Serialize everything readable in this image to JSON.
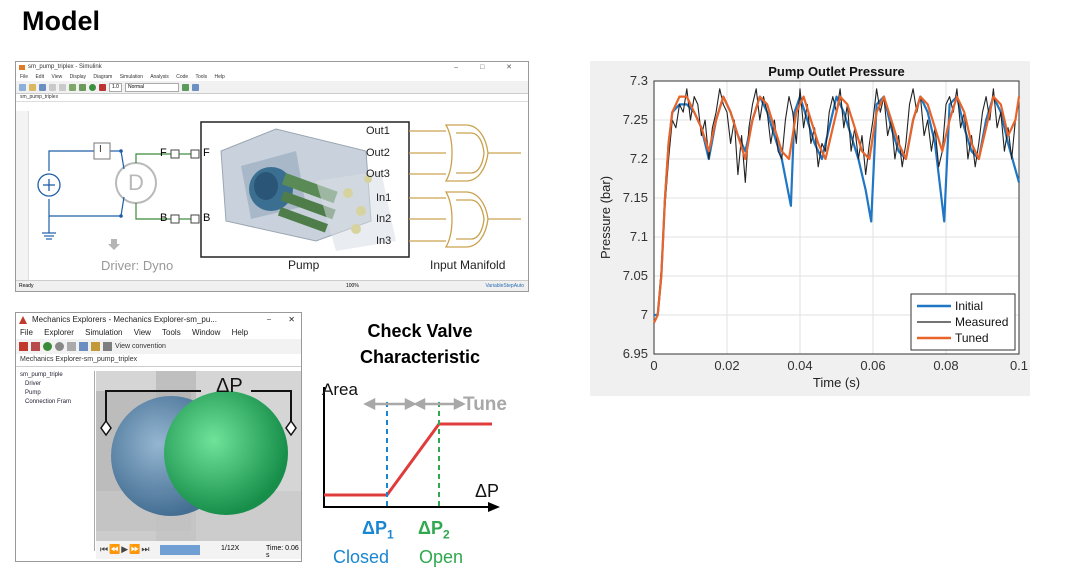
{
  "slide": {
    "title": "Model"
  },
  "simulink": {
    "window_title": "sm_pump_triplex - Simulink",
    "window_controls": "–  □  ✕",
    "menu": [
      "File",
      "Edit",
      "View",
      "Display",
      "Diagram",
      "Simulation",
      "Analysis",
      "Code",
      "Tools",
      "Help"
    ],
    "stop_time": "1.0",
    "sim_mode": "Normal",
    "tab": "sm_pump_triplex",
    "blocks": {
      "driver_label": "Driver: Dyno",
      "pump_label": "Pump",
      "manifold_label": "Input Manifold",
      "driver_letter": "D",
      "inner_block": "I"
    },
    "ports": {
      "f_left": "F",
      "f_right": "F",
      "b_left": "B",
      "b_right": "B"
    },
    "outputs": [
      "Out1",
      "Out2",
      "Out3",
      "In1",
      "In2",
      "In3"
    ],
    "status": {
      "left": "Ready",
      "center": "100%",
      "right": "VariableStepAuto"
    }
  },
  "mechanics": {
    "window_title": "Mechanics Explorers - Mechanics Explorer-sm_pu...",
    "menu": [
      "File",
      "Explorer",
      "Simulation",
      "View",
      "Tools",
      "Window",
      "Help"
    ],
    "view_label": "View convention",
    "tab": "Mechanics Explorer-sm_pump_triplex",
    "tree": [
      "sm_pump_triple",
      "Driver",
      "Pump",
      "Connection Fram"
    ],
    "speed": "1/12X",
    "time_label": "Time: 0.06 s",
    "delta_p": "ΔP"
  },
  "valve": {
    "title_line1": "Check Valve",
    "title_line2": "Characteristic",
    "area_label": "Area",
    "tune_label": "Tune",
    "dp_label": "ΔP",
    "dp1": "ΔP",
    "dp1_sub": "1",
    "dp2": "ΔP",
    "dp2_sub": "2",
    "closed": "Closed",
    "open": "Open",
    "colors": {
      "curve": "#e03c3c",
      "dp1": "#1a86d0",
      "dp2": "#2fa84f",
      "tune": "#a8a8a8"
    }
  },
  "chart_data": {
    "type": "line",
    "title": "Pump Outlet Pressure",
    "xlabel": "Time (s)",
    "ylabel": "Pressure (bar)",
    "xlim": [
      0,
      0.1
    ],
    "ylim": [
      6.95,
      7.3
    ],
    "xticks": [
      0,
      0.02,
      0.04,
      0.06,
      0.08,
      0.1
    ],
    "xtick_labels": [
      "0",
      "0.02",
      "0.04",
      "0.06",
      "0.08",
      "0.1"
    ],
    "yticks": [
      6.95,
      7,
      7.05,
      7.1,
      7.15,
      7.2,
      7.25,
      7.3
    ],
    "ytick_labels": [
      "6.95",
      "7",
      "7.05",
      "7.1",
      "7.15",
      "7.2",
      "7.25",
      "7.3"
    ],
    "legend_position": "bottom-right",
    "series": [
      {
        "name": "Initial",
        "color": "#1f77c4",
        "x": [
          0,
          0.001,
          0.002,
          0.003,
          0.004,
          0.005,
          0.007,
          0.009,
          0.011,
          0.013,
          0.015,
          0.017,
          0.019,
          0.021,
          0.023,
          0.025,
          0.027,
          0.029,
          0.031,
          0.033,
          0.035,
          0.0375,
          0.0385,
          0.04,
          0.042,
          0.044,
          0.046,
          0.048,
          0.05,
          0.052,
          0.054,
          0.056,
          0.058,
          0.0595,
          0.061,
          0.063,
          0.065,
          0.067,
          0.069,
          0.071,
          0.073,
          0.075,
          0.077,
          0.0795,
          0.081,
          0.083,
          0.085,
          0.087,
          0.089,
          0.091,
          0.093,
          0.095,
          0.097,
          0.1
        ],
        "y": [
          7.0,
          7.0,
          7.05,
          7.15,
          7.22,
          7.26,
          7.27,
          7.27,
          7.26,
          7.24,
          7.2,
          7.25,
          7.28,
          7.26,
          7.23,
          7.21,
          7.25,
          7.28,
          7.26,
          7.23,
          7.2,
          7.14,
          7.26,
          7.28,
          7.25,
          7.22,
          7.2,
          7.24,
          7.28,
          7.26,
          7.23,
          7.2,
          7.16,
          7.12,
          7.27,
          7.28,
          7.24,
          7.21,
          7.2,
          7.25,
          7.28,
          7.26,
          7.22,
          7.12,
          7.27,
          7.28,
          7.24,
          7.21,
          7.2,
          7.25,
          7.28,
          7.26,
          7.22,
          7.17
        ]
      },
      {
        "name": "Measured",
        "color": "#222222",
        "x": [
          0,
          0.001,
          0.002,
          0.003,
          0.004,
          0.005,
          0.006,
          0.007,
          0.008,
          0.009,
          0.01,
          0.011,
          0.012,
          0.013,
          0.014,
          0.015,
          0.016,
          0.017,
          0.018,
          0.019,
          0.02,
          0.021,
          0.022,
          0.023,
          0.024,
          0.025,
          0.026,
          0.027,
          0.028,
          0.029,
          0.03,
          0.031,
          0.032,
          0.033,
          0.034,
          0.035,
          0.036,
          0.037,
          0.038,
          0.039,
          0.04,
          0.041,
          0.042,
          0.043,
          0.044,
          0.045,
          0.046,
          0.047,
          0.048,
          0.049,
          0.05,
          0.051,
          0.052,
          0.053,
          0.054,
          0.055,
          0.056,
          0.057,
          0.058,
          0.059,
          0.06,
          0.061,
          0.062,
          0.063,
          0.064,
          0.065,
          0.066,
          0.067,
          0.068,
          0.069,
          0.07,
          0.071,
          0.072,
          0.073,
          0.074,
          0.075,
          0.076,
          0.077,
          0.078,
          0.079,
          0.08,
          0.081,
          0.082,
          0.083,
          0.084,
          0.085,
          0.086,
          0.087,
          0.088,
          0.089,
          0.09,
          0.091,
          0.092,
          0.093,
          0.094,
          0.095,
          0.096,
          0.097,
          0.098,
          0.099,
          0.1
        ],
        "y": [
          6.99,
          7.0,
          7.06,
          7.14,
          7.2,
          7.25,
          7.24,
          7.27,
          7.26,
          7.29,
          7.25,
          7.28,
          7.27,
          7.23,
          7.25,
          7.2,
          7.24,
          7.26,
          7.29,
          7.27,
          7.26,
          7.22,
          7.25,
          7.18,
          7.23,
          7.17,
          7.24,
          7.27,
          7.29,
          7.25,
          7.28,
          7.26,
          7.22,
          7.25,
          7.21,
          7.2,
          7.25,
          7.28,
          7.26,
          7.22,
          7.29,
          7.24,
          7.27,
          7.22,
          7.24,
          7.19,
          7.22,
          7.21,
          7.26,
          7.28,
          7.26,
          7.29,
          7.24,
          7.27,
          7.21,
          7.24,
          7.2,
          7.23,
          7.18,
          7.22,
          7.25,
          7.29,
          7.26,
          7.28,
          7.23,
          7.25,
          7.2,
          7.23,
          7.19,
          7.22,
          7.27,
          7.29,
          7.26,
          7.28,
          7.23,
          7.25,
          7.21,
          7.24,
          7.19,
          7.21,
          7.27,
          7.28,
          7.26,
          7.29,
          7.24,
          7.26,
          7.2,
          7.23,
          7.19,
          7.22,
          7.26,
          7.28,
          7.25,
          7.29,
          7.24,
          7.26,
          7.21,
          7.24,
          7.2,
          7.25,
          7.28
        ]
      },
      {
        "name": "Tuned",
        "color": "#e8642a",
        "x": [
          0,
          0.001,
          0.002,
          0.003,
          0.004,
          0.005,
          0.007,
          0.009,
          0.011,
          0.013,
          0.015,
          0.017,
          0.019,
          0.021,
          0.023,
          0.025,
          0.027,
          0.029,
          0.031,
          0.033,
          0.035,
          0.037,
          0.039,
          0.041,
          0.043,
          0.045,
          0.047,
          0.049,
          0.051,
          0.053,
          0.055,
          0.057,
          0.059,
          0.061,
          0.063,
          0.065,
          0.067,
          0.069,
          0.071,
          0.073,
          0.075,
          0.077,
          0.079,
          0.081,
          0.083,
          0.085,
          0.087,
          0.089,
          0.091,
          0.093,
          0.095,
          0.097,
          0.099,
          0.1
        ],
        "y": [
          6.99,
          7.0,
          7.05,
          7.15,
          7.22,
          7.26,
          7.28,
          7.28,
          7.26,
          7.24,
          7.21,
          7.25,
          7.28,
          7.26,
          7.23,
          7.2,
          7.25,
          7.28,
          7.27,
          7.24,
          7.21,
          7.2,
          7.26,
          7.28,
          7.25,
          7.22,
          7.2,
          7.24,
          7.28,
          7.27,
          7.24,
          7.21,
          7.2,
          7.26,
          7.28,
          7.25,
          7.22,
          7.2,
          7.25,
          7.28,
          7.27,
          7.24,
          7.21,
          7.25,
          7.28,
          7.26,
          7.22,
          7.2,
          7.24,
          7.28,
          7.27,
          7.23,
          7.25,
          7.28
        ]
      }
    ]
  }
}
